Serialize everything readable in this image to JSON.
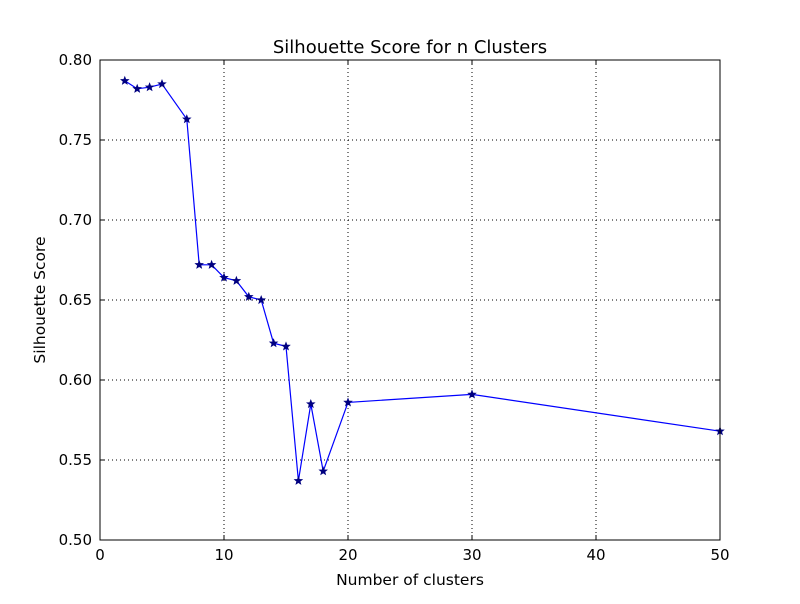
{
  "chart_data": {
    "type": "line",
    "title": "Silhouette Score for n Clusters",
    "xlabel": "Number of clusters",
    "ylabel": "Silhouette Score",
    "xlim": [
      0,
      50
    ],
    "ylim": [
      0.5,
      0.8
    ],
    "xticks": [
      0,
      10,
      20,
      30,
      40,
      50
    ],
    "xtick_labels": [
      "0",
      "10",
      "20",
      "30",
      "40",
      "50"
    ],
    "yticks": [
      0.5,
      0.55,
      0.6,
      0.65,
      0.7,
      0.75,
      0.8
    ],
    "ytick_labels": [
      "0.50",
      "0.55",
      "0.60",
      "0.65",
      "0.70",
      "0.75",
      "0.80"
    ],
    "grid": true,
    "line_color": "#0000ff",
    "marker": "star",
    "marker_color": "#000080",
    "series": [
      {
        "x": [
          2,
          3,
          4,
          5,
          7,
          8,
          9,
          10,
          11,
          12,
          13,
          14,
          15,
          16,
          17,
          18,
          20,
          30,
          50
        ],
        "values": [
          0.787,
          0.782,
          0.783,
          0.785,
          0.763,
          0.672,
          0.672,
          0.664,
          0.662,
          0.652,
          0.65,
          0.623,
          0.621,
          0.537,
          0.585,
          0.543,
          0.586,
          0.591,
          0.568
        ]
      }
    ]
  }
}
